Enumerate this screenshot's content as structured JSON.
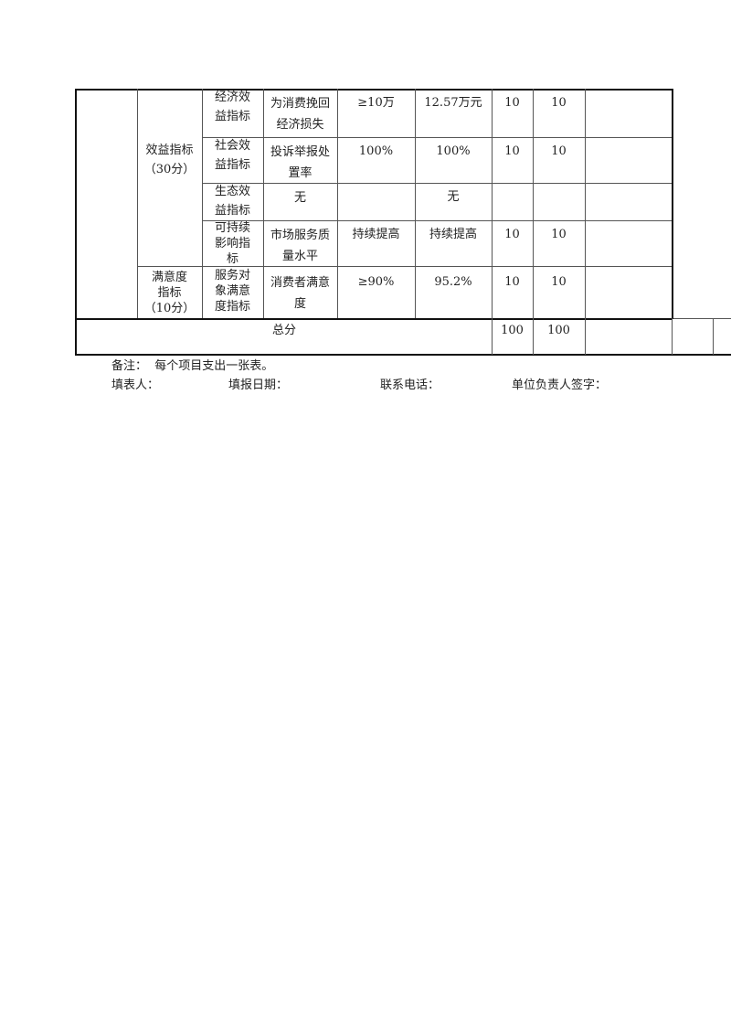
{
  "table": {
    "benefit_category": "效益指标\n（30分）",
    "satisfaction_category": "满意度\n指标\n（10分）",
    "rows": [
      {
        "sub": "经济效\n益指标",
        "indicator": "为消费挽回\n经济损失",
        "target": "≥10万",
        "actual": "12.57万元",
        "weight": "10",
        "score": "10"
      },
      {
        "sub": "社会效\n益指标",
        "indicator": "投诉举报处\n置率",
        "target": "100%",
        "actual": "100%",
        "weight": "10",
        "score": "10"
      },
      {
        "sub": "生态效\n益指标",
        "indicator": "无",
        "target": "",
        "actual": "无",
        "weight": "",
        "score": ""
      },
      {
        "sub": "可持续\n影响指\n标",
        "indicator": "市场服务质\n量水平",
        "target": "持续提高",
        "actual": "持续提高",
        "weight": "10",
        "score": "10"
      },
      {
        "sub": "服务对\n象满意\n度指标",
        "indicator": "消费者满意\n度",
        "target": "≥90%",
        "actual": "95.2%",
        "weight": "10",
        "score": "10"
      }
    ],
    "total_label": "总分",
    "total_weight": "100",
    "total_score": "100"
  },
  "footer": {
    "note": "备注：  每个项目支出一张表。",
    "filler": "填表人：",
    "date": "填报日期：",
    "phone": "联系电话：",
    "signature": "单位负责人签字："
  }
}
